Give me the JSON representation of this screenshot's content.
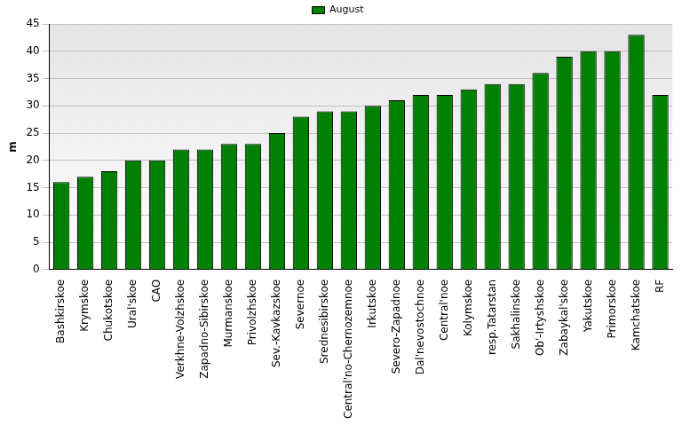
{
  "chart_data": {
    "type": "bar",
    "y_label": "m",
    "categories": [
      "Bashkirskoe",
      "Krymskoe",
      "Chukotskoe",
      "Ural'skoe",
      "CAO",
      "Verkhne-Volzhskoe",
      "Zapadno-Sibirskoe",
      "Murmanskoe",
      "Privolzhskoe",
      "Sev.-Kavkazskoe",
      "Severnoe",
      "Srednesibirskoe",
      "Central'no-Chernozemnoe",
      "Irkutskoe",
      "Severo-Zapadnoe",
      "Dal'nevostochnoe",
      "Central'noe",
      "Kolymskoe",
      "resp.Tatarstan",
      "Sakhalinskoe",
      "Ob'-Irtyshskoe",
      "Zabaykal'skoe",
      "Yakutskoe",
      "Primorskoe",
      "Kamchatskoe",
      "RF"
    ],
    "series": [
      {
        "name": "August",
        "color": "#008000",
        "values": [
          16,
          17,
          18,
          20,
          20,
          22,
          22,
          23,
          23,
          25,
          28,
          29,
          29,
          30,
          31,
          32,
          32,
          33,
          34,
          34,
          36,
          39,
          40,
          40,
          43,
          32
        ]
      }
    ],
    "ylim": [
      0,
      45
    ],
    "yticks": [
      0,
      5,
      10,
      15,
      20,
      25,
      30,
      35,
      40,
      45
    ],
    "grid": true,
    "legend": "top"
  }
}
